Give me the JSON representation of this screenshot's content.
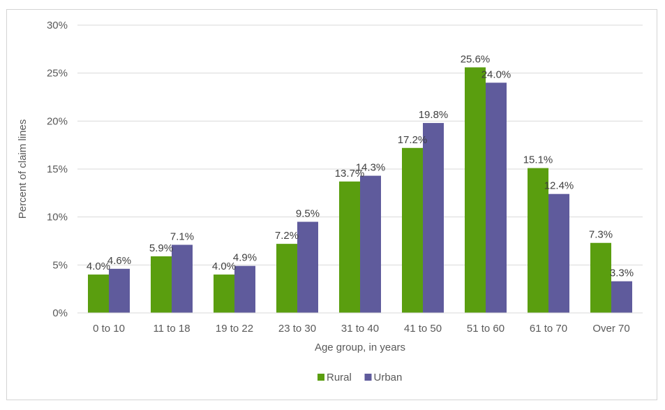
{
  "chart_data": {
    "type": "bar",
    "categories": [
      "0 to 10",
      "11 to 18",
      "19 to 22",
      "23 to 30",
      "31 to 40",
      "41 to 50",
      "51 to 60",
      "61 to 70",
      "Over 70"
    ],
    "series": [
      {
        "name": "Rural",
        "color": "#5a9e0f",
        "values": [
          4.0,
          5.9,
          4.0,
          7.2,
          13.7,
          17.2,
          25.6,
          15.1,
          7.3
        ]
      },
      {
        "name": "Urban",
        "color": "#5f5b9c",
        "values": [
          4.6,
          7.1,
          4.9,
          9.5,
          14.3,
          19.8,
          24.0,
          12.4,
          3.3
        ]
      }
    ],
    "data_labels": {
      "Rural": [
        "4.0%",
        "5.9%",
        "4.0%",
        "7.2%",
        "13.7%",
        "17.2%",
        "25.6%",
        "15.1%",
        "7.3%"
      ],
      "Urban": [
        "4.6%",
        "7.1%",
        "4.9%",
        "9.5%",
        "14.3%",
        "19.8%",
        "24.0%",
        "12.4%",
        "3.3%"
      ]
    },
    "y_ticks": [
      "0%",
      "5%",
      "10%",
      "15%",
      "20%",
      "25%",
      "30%"
    ],
    "ylim": [
      0,
      30
    ],
    "xlabel": "Age group, in years",
    "ylabel": "Percent of claim lines",
    "grid": true,
    "legend_position": "bottom"
  }
}
